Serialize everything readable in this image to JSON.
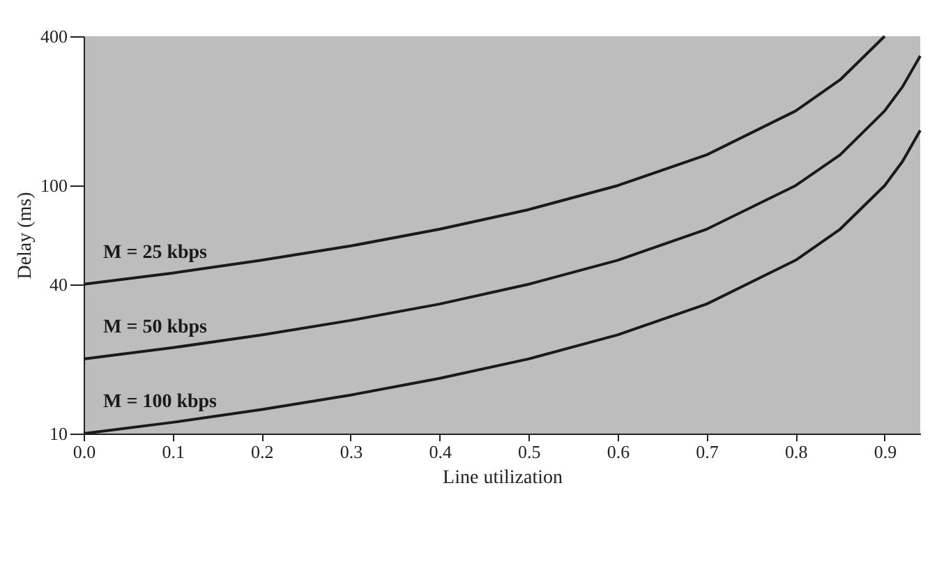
{
  "chart_data": {
    "type": "line",
    "xlabel": "Line utilization",
    "ylabel": "Delay (ms)",
    "log": "y",
    "grid": false,
    "legend": false,
    "marker": "none",
    "line_style": "solid",
    "xlim": [
      0,
      0.94
    ],
    "xticks": [
      {
        "value": 0,
        "label": "0.0"
      },
      0.1,
      0.2,
      0.3,
      0.4,
      0.5,
      0.6,
      0.7,
      0.8,
      0.9
    ],
    "ylim": [
      10,
      400
    ],
    "yticks": [
      10,
      40,
      100,
      400
    ],
    "series": [
      {
        "name": "M = 25 kbps",
        "color": "#1a1a1a",
        "x": [
          0,
          0.1,
          0.2,
          0.3,
          0.4,
          0.5,
          0.6,
          0.7,
          0.8,
          0.85,
          0.9
        ],
        "values": [
          40,
          44.4,
          50,
          57.1,
          66.7,
          80,
          100,
          133,
          200,
          267,
          400
        ]
      },
      {
        "name": "M = 50 kbps",
        "color": "#1a1a1a",
        "x": [
          0,
          0.1,
          0.2,
          0.3,
          0.4,
          0.5,
          0.6,
          0.7,
          0.8,
          0.85,
          0.9,
          0.92,
          0.94
        ],
        "values": [
          20,
          22.2,
          25,
          28.6,
          33.3,
          40,
          50,
          66.7,
          100,
          133,
          200,
          250,
          333
        ]
      },
      {
        "name": "M = 100 kbps",
        "color": "#1a1a1a",
        "x": [
          0,
          0.1,
          0.2,
          0.3,
          0.4,
          0.5,
          0.6,
          0.7,
          0.8,
          0.85,
          0.9,
          0.92,
          0.94
        ],
        "values": [
          10,
          11.1,
          12.5,
          14.3,
          16.7,
          20,
          25,
          33.3,
          50,
          66.7,
          100,
          125,
          167
        ]
      }
    ]
  }
}
